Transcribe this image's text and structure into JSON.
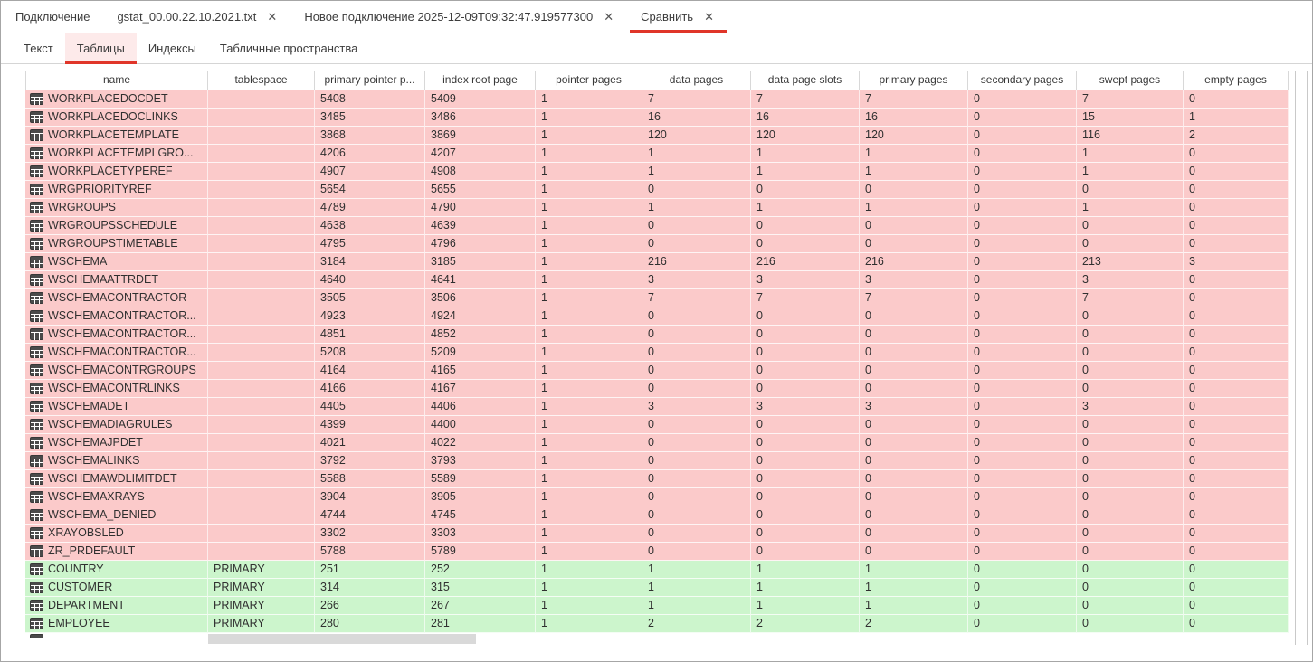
{
  "tab_bar": {
    "close_icon": "✕",
    "tabs": [
      {
        "label": "Подключение",
        "closable": false,
        "active": false
      },
      {
        "label": "gstat_00.00.22.10.2021.txt",
        "closable": true,
        "active": false
      },
      {
        "label": "Новое подключение 2025-12-09T09:32:47.919577300",
        "closable": true,
        "active": false
      },
      {
        "label": "Сравнить",
        "closable": true,
        "active": true
      }
    ]
  },
  "subtab_bar": {
    "tabs": [
      {
        "label": "Текст",
        "active": false
      },
      {
        "label": "Таблицы",
        "active": true
      },
      {
        "label": "Индексы",
        "active": false
      },
      {
        "label": "Табличные пространства",
        "active": false
      }
    ]
  },
  "colors": {
    "accent_red": "#e03529",
    "removed_row_bg": "#fbcaca",
    "added_row_bg": "#ccf5cc",
    "active_subtab_bg": "#fdeaea",
    "scrollbar_thumb": "#d9d9d9",
    "icon_dark": "#4a4a4a"
  },
  "table": {
    "columns": [
      "name",
      "tablespace",
      "primary pointer p...",
      "index root page",
      "pointer pages",
      "data pages",
      "data page slots",
      "primary pages",
      "secondary pages",
      "swept pages",
      "empty pages"
    ],
    "rows": [
      {
        "name": "WORKPLACEDOCDET",
        "tablespace": "",
        "values": [
          "5408",
          "5409",
          "1",
          "7",
          "7",
          "7",
          "0",
          "7",
          "0"
        ],
        "status": "removed"
      },
      {
        "name": "WORKPLACEDOCLINKS",
        "tablespace": "",
        "values": [
          "3485",
          "3486",
          "1",
          "16",
          "16",
          "16",
          "0",
          "15",
          "1"
        ],
        "status": "removed"
      },
      {
        "name": "WORKPLACETEMPLATE",
        "tablespace": "",
        "values": [
          "3868",
          "3869",
          "1",
          "120",
          "120",
          "120",
          "0",
          "116",
          "2"
        ],
        "status": "removed"
      },
      {
        "name": "WORKPLACETEMPLGRO...",
        "tablespace": "",
        "values": [
          "4206",
          "4207",
          "1",
          "1",
          "1",
          "1",
          "0",
          "1",
          "0"
        ],
        "status": "removed"
      },
      {
        "name": "WORKPLACETYPEREF",
        "tablespace": "",
        "values": [
          "4907",
          "4908",
          "1",
          "1",
          "1",
          "1",
          "0",
          "1",
          "0"
        ],
        "status": "removed"
      },
      {
        "name": "WRGPRIORITYREF",
        "tablespace": "",
        "values": [
          "5654",
          "5655",
          "1",
          "0",
          "0",
          "0",
          "0",
          "0",
          "0"
        ],
        "status": "removed"
      },
      {
        "name": "WRGROUPS",
        "tablespace": "",
        "values": [
          "4789",
          "4790",
          "1",
          "1",
          "1",
          "1",
          "0",
          "1",
          "0"
        ],
        "status": "removed"
      },
      {
        "name": "WRGROUPSSCHEDULE",
        "tablespace": "",
        "values": [
          "4638",
          "4639",
          "1",
          "0",
          "0",
          "0",
          "0",
          "0",
          "0"
        ],
        "status": "removed"
      },
      {
        "name": "WRGROUPSTIMETABLE",
        "tablespace": "",
        "values": [
          "4795",
          "4796",
          "1",
          "0",
          "0",
          "0",
          "0",
          "0",
          "0"
        ],
        "status": "removed"
      },
      {
        "name": "WSCHEMA",
        "tablespace": "",
        "values": [
          "3184",
          "3185",
          "1",
          "216",
          "216",
          "216",
          "0",
          "213",
          "3"
        ],
        "status": "removed"
      },
      {
        "name": "WSCHEMAATTRDET",
        "tablespace": "",
        "values": [
          "4640",
          "4641",
          "1",
          "3",
          "3",
          "3",
          "0",
          "3",
          "0"
        ],
        "status": "removed"
      },
      {
        "name": "WSCHEMACONTRACTOR",
        "tablespace": "",
        "values": [
          "3505",
          "3506",
          "1",
          "7",
          "7",
          "7",
          "0",
          "7",
          "0"
        ],
        "status": "removed"
      },
      {
        "name": "WSCHEMACONTRACTOR...",
        "tablespace": "",
        "values": [
          "4923",
          "4924",
          "1",
          "0",
          "0",
          "0",
          "0",
          "0",
          "0"
        ],
        "status": "removed"
      },
      {
        "name": "WSCHEMACONTRACTOR...",
        "tablespace": "",
        "values": [
          "4851",
          "4852",
          "1",
          "0",
          "0",
          "0",
          "0",
          "0",
          "0"
        ],
        "status": "removed"
      },
      {
        "name": "WSCHEMACONTRACTOR...",
        "tablespace": "",
        "values": [
          "5208",
          "5209",
          "1",
          "0",
          "0",
          "0",
          "0",
          "0",
          "0"
        ],
        "status": "removed"
      },
      {
        "name": "WSCHEMACONTRGROUPS",
        "tablespace": "",
        "values": [
          "4164",
          "4165",
          "1",
          "0",
          "0",
          "0",
          "0",
          "0",
          "0"
        ],
        "status": "removed"
      },
      {
        "name": "WSCHEMACONTRLINKS",
        "tablespace": "",
        "values": [
          "4166",
          "4167",
          "1",
          "0",
          "0",
          "0",
          "0",
          "0",
          "0"
        ],
        "status": "removed"
      },
      {
        "name": "WSCHEMADET",
        "tablespace": "",
        "values": [
          "4405",
          "4406",
          "1",
          "3",
          "3",
          "3",
          "0",
          "3",
          "0"
        ],
        "status": "removed"
      },
      {
        "name": "WSCHEMADIAGRULES",
        "tablespace": "",
        "values": [
          "4399",
          "4400",
          "1",
          "0",
          "0",
          "0",
          "0",
          "0",
          "0"
        ],
        "status": "removed"
      },
      {
        "name": "WSCHEMAJPDET",
        "tablespace": "",
        "values": [
          "4021",
          "4022",
          "1",
          "0",
          "0",
          "0",
          "0",
          "0",
          "0"
        ],
        "status": "removed"
      },
      {
        "name": "WSCHEMALINKS",
        "tablespace": "",
        "values": [
          "3792",
          "3793",
          "1",
          "0",
          "0",
          "0",
          "0",
          "0",
          "0"
        ],
        "status": "removed"
      },
      {
        "name": "WSCHEMAWDLIMITDET",
        "tablespace": "",
        "values": [
          "5588",
          "5589",
          "1",
          "0",
          "0",
          "0",
          "0",
          "0",
          "0"
        ],
        "status": "removed"
      },
      {
        "name": "WSCHEMAXRAYS",
        "tablespace": "",
        "values": [
          "3904",
          "3905",
          "1",
          "0",
          "0",
          "0",
          "0",
          "0",
          "0"
        ],
        "status": "removed"
      },
      {
        "name": "WSCHEMA_DENIED",
        "tablespace": "",
        "values": [
          "4744",
          "4745",
          "1",
          "0",
          "0",
          "0",
          "0",
          "0",
          "0"
        ],
        "status": "removed"
      },
      {
        "name": "XRAYOBSLED",
        "tablespace": "",
        "values": [
          "3302",
          "3303",
          "1",
          "0",
          "0",
          "0",
          "0",
          "0",
          "0"
        ],
        "status": "removed"
      },
      {
        "name": "ZR_PRDEFAULT",
        "tablespace": "",
        "values": [
          "5788",
          "5789",
          "1",
          "0",
          "0",
          "0",
          "0",
          "0",
          "0"
        ],
        "status": "removed"
      },
      {
        "name": "COUNTRY",
        "tablespace": "PRIMARY",
        "values": [
          "251",
          "252",
          "1",
          "1",
          "1",
          "1",
          "0",
          "0",
          "0"
        ],
        "status": "added"
      },
      {
        "name": "CUSTOMER",
        "tablespace": "PRIMARY",
        "values": [
          "314",
          "315",
          "1",
          "1",
          "1",
          "1",
          "0",
          "0",
          "0"
        ],
        "status": "added"
      },
      {
        "name": "DEPARTMENT",
        "tablespace": "PRIMARY",
        "values": [
          "266",
          "267",
          "1",
          "1",
          "1",
          "1",
          "0",
          "0",
          "0"
        ],
        "status": "added"
      },
      {
        "name": "EMPLOYEE",
        "tablespace": "PRIMARY",
        "values": [
          "280",
          "281",
          "1",
          "2",
          "2",
          "2",
          "0",
          "0",
          "0"
        ],
        "status": "added"
      }
    ]
  }
}
